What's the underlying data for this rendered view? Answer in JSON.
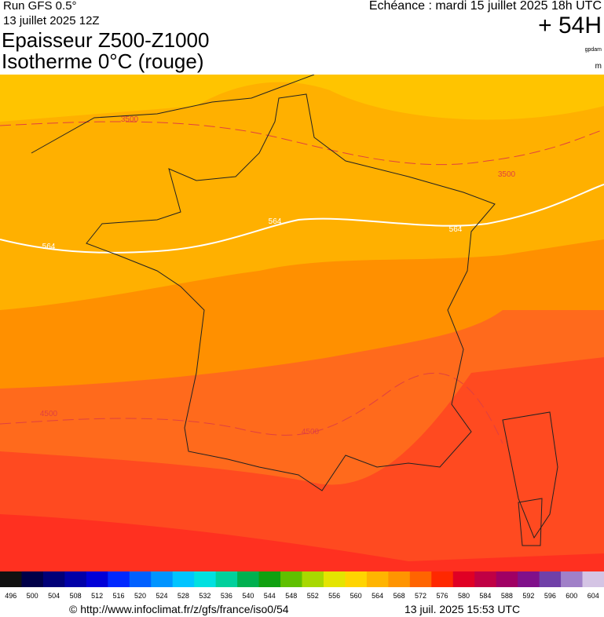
{
  "header": {
    "run": "Run GFS 0.5°",
    "run_date": "13 juillet 2025 12Z",
    "valid": "Echéance : mardi 15 juillet 2025 18h UTC",
    "lead": "+ 54H",
    "title": "Epaisseur Z500-Z1000",
    "subtitle": "Isotherme 0°C (rouge)",
    "unit_thickness": "gpdam",
    "unit_iso": "m"
  },
  "map": {
    "contour_labels": [
      "3500",
      "564",
      "564",
      "564",
      "3500",
      "4500",
      "4500"
    ]
  },
  "legend": {
    "ticks": [
      496,
      500,
      504,
      508,
      512,
      516,
      520,
      524,
      528,
      532,
      536,
      540,
      544,
      548,
      552,
      556,
      560,
      564,
      568,
      572,
      576,
      580,
      584,
      588,
      592,
      596,
      600,
      604
    ],
    "colors": [
      "#111111",
      "#000048",
      "#000078",
      "#0000a8",
      "#0000d8",
      "#0028ff",
      "#0060ff",
      "#0094ff",
      "#00c4ff",
      "#00e0e0",
      "#00d09c",
      "#00b050",
      "#10a010",
      "#60c000",
      "#a8d800",
      "#e4e400",
      "#ffd400",
      "#ffb400",
      "#ff9400",
      "#ff6400",
      "#ff2800",
      "#e00024",
      "#c00044",
      "#a00064",
      "#80108a",
      "#7040a8",
      "#a080c8",
      "#d4c4e4"
    ]
  },
  "footer": {
    "url": "© http://www.infoclimat.fr/z/gfs/france/iso0/54",
    "timestamp": "13 juil. 2025 15:53 UTC"
  }
}
